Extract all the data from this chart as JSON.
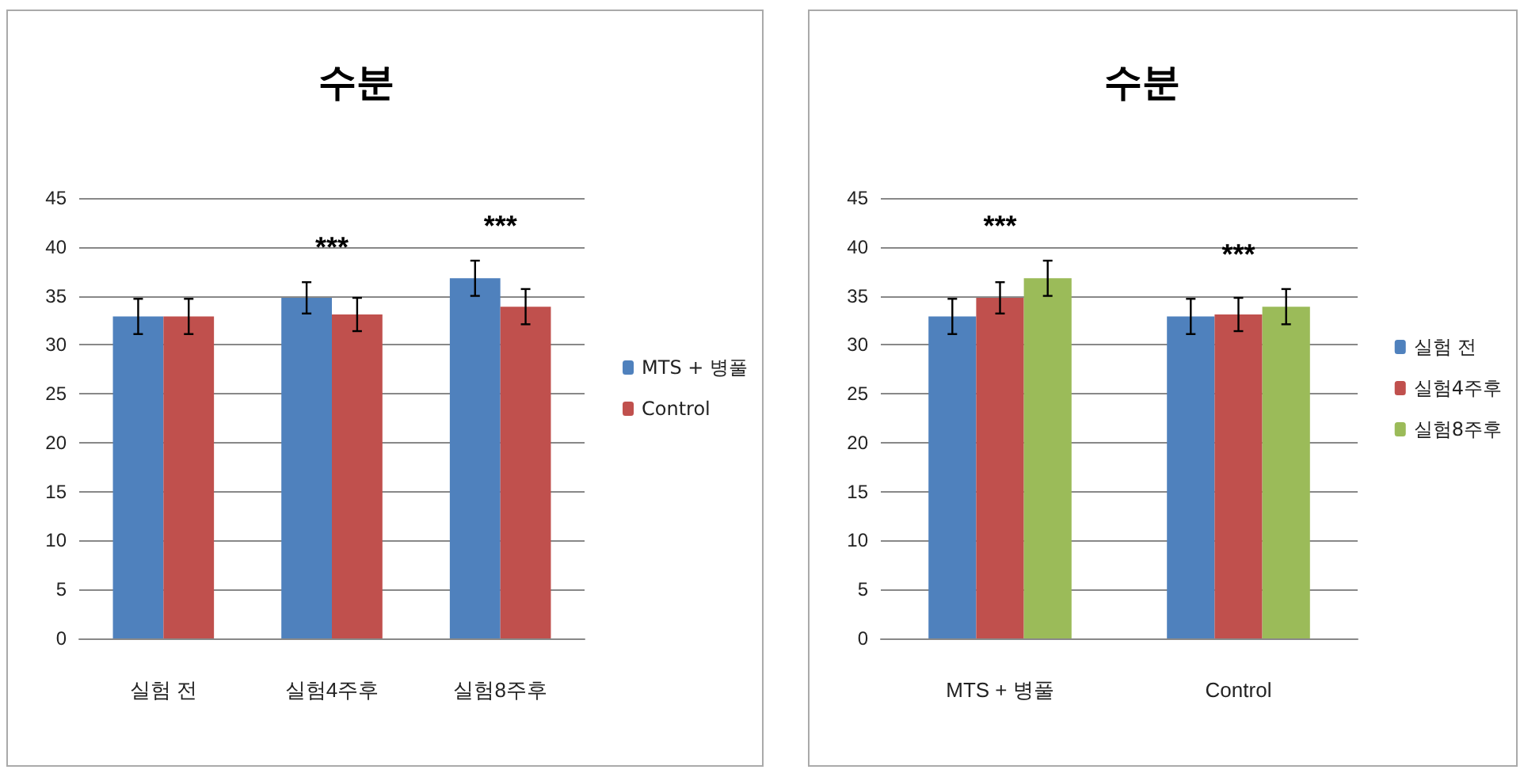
{
  "chart_data": [
    {
      "type": "bar",
      "title": "수분",
      "categories": [
        "실험 전",
        "실험4주후",
        "실험8주후"
      ],
      "series": [
        {
          "name": "MTS + 병풀",
          "color": "#4f81bd",
          "values": [
            32.9,
            34.8,
            36.8
          ],
          "errors": [
            1.8,
            1.6,
            1.8
          ]
        },
        {
          "name": "Control",
          "color": "#c0504d",
          "values": [
            32.9,
            33.1,
            33.9
          ],
          "errors": [
            1.8,
            1.7,
            1.8
          ]
        }
      ],
      "ylim": [
        0,
        45
      ],
      "yticks": [
        0,
        5,
        10,
        15,
        20,
        25,
        30,
        35,
        40,
        45
      ],
      "grid": "y",
      "legend": "right",
      "annotations": [
        "***",
        "***"
      ]
    },
    {
      "type": "bar",
      "title": "수분",
      "categories": [
        "MTS + 병풀",
        "Control"
      ],
      "series": [
        {
          "name": "실험 전",
          "color": "#4f81bd",
          "values": [
            32.9,
            32.9
          ],
          "errors": [
            1.8,
            1.8
          ]
        },
        {
          "name": "실험4주후",
          "color": "#c0504d",
          "values": [
            34.8,
            33.1
          ],
          "errors": [
            1.6,
            1.7
          ]
        },
        {
          "name": "실험8주후",
          "color": "#9bbb59",
          "values": [
            36.8,
            33.9
          ],
          "errors": [
            1.8,
            1.8
          ]
        }
      ],
      "ylim": [
        0,
        45
      ],
      "yticks": [
        0,
        5,
        10,
        15,
        20,
        25,
        30,
        35,
        40,
        45
      ],
      "grid": "y",
      "legend": "right",
      "annotations": [
        "***",
        "***"
      ]
    }
  ]
}
